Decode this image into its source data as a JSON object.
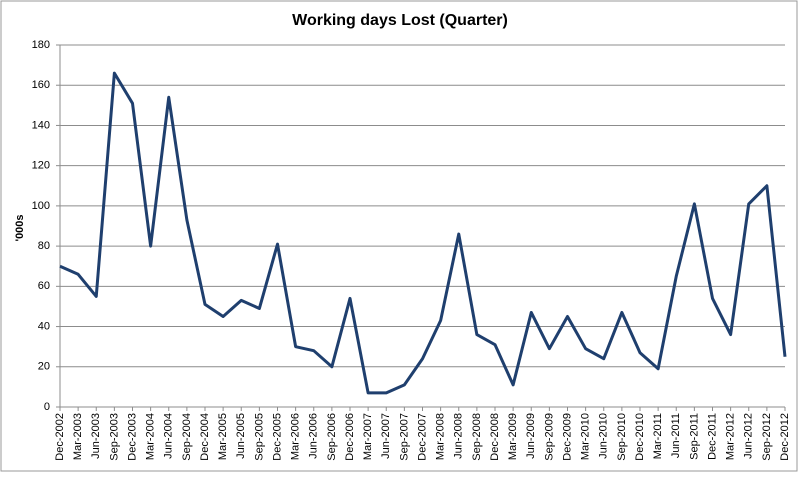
{
  "chart_data": {
    "type": "line",
    "title": "Working days Lost (Quarter)",
    "y_label": "'000s",
    "categories": [
      "Dec-2002",
      "Mar-2003",
      "Jun-2003",
      "Sep-2003",
      "Dec-2003",
      "Mar-2004",
      "Jun-2004",
      "Sep-2004",
      "Dec-2004",
      "Mar-2005",
      "Jun-2005",
      "Sep-2005",
      "Dec-2005",
      "Mar-2006",
      "Jun-2006",
      "Sep-2006",
      "Dec-2006",
      "Mar-2007",
      "Jun-2007",
      "Sep-2007",
      "Dec-2007",
      "Mar-2008",
      "Jun-2008",
      "Sep-2008",
      "Dec-2008",
      "Mar-2009",
      "Jun-2009",
      "Sep-2009",
      "Dec-2009",
      "Mar-2010",
      "Jun-2010",
      "Sep-2010",
      "Dec-2010",
      "Mar-2011",
      "Jun-2011",
      "Sep-2011",
      "Dec-2011",
      "Mar-2012",
      "Jun-2012",
      "Sep-2012",
      "Dec-2012"
    ],
    "values": [
      70,
      66,
      55,
      166,
      151,
      80,
      154,
      93,
      51,
      45,
      53,
      49,
      81,
      30,
      28,
      20,
      54,
      7,
      7,
      11,
      24,
      43,
      86,
      36,
      31,
      11,
      47,
      29,
      45,
      29,
      24,
      47,
      27,
      19,
      65,
      101,
      54,
      36,
      101,
      110,
      25
    ],
    "color": "#1f3f6e",
    "ylim": [
      0,
      180
    ],
    "yticks": [
      0,
      20,
      40,
      60,
      80,
      100,
      120,
      140,
      160,
      180
    ],
    "grid": true
  }
}
